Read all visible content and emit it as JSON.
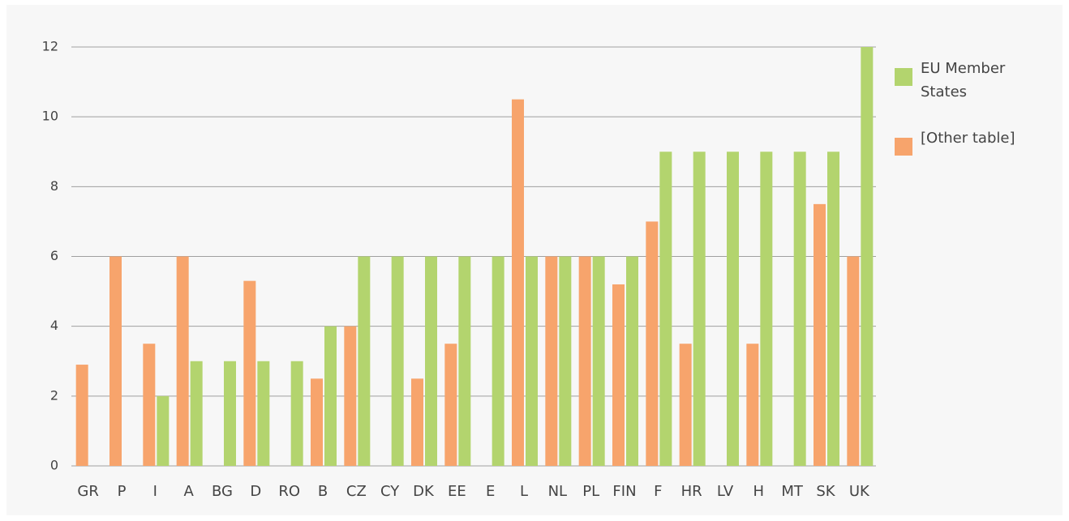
{
  "chart_data": {
    "type": "bar",
    "categories": [
      "GR",
      "P",
      "I",
      "A",
      "BG",
      "D",
      "RO",
      "B",
      "CZ",
      "CY",
      "DK",
      "EE",
      "E",
      "L",
      "NL",
      "PL",
      "FIN",
      "F",
      "HR",
      "LV",
      "H",
      "MT",
      "SK",
      "UK"
    ],
    "series": [
      {
        "name": "EU Member States",
        "color": "#b3d46e",
        "values": [
          null,
          null,
          2,
          3,
          3,
          3,
          3,
          4,
          6,
          6,
          6,
          6,
          6,
          6,
          6,
          6,
          6,
          9,
          9,
          9,
          9,
          9,
          9,
          12
        ]
      },
      {
        "name": "[Other table]",
        "color": "#f7a46c",
        "values": [
          2.9,
          6,
          3.5,
          6,
          null,
          5.3,
          null,
          2.5,
          4,
          null,
          2.5,
          3.5,
          null,
          10.5,
          6,
          6,
          5.2,
          7,
          3.5,
          null,
          3.5,
          null,
          7.5,
          6
        ]
      }
    ],
    "ylim": [
      0,
      12
    ],
    "yticks": [
      0,
      2,
      4,
      6,
      8,
      10,
      12
    ],
    "grid": true,
    "legend": "right"
  }
}
